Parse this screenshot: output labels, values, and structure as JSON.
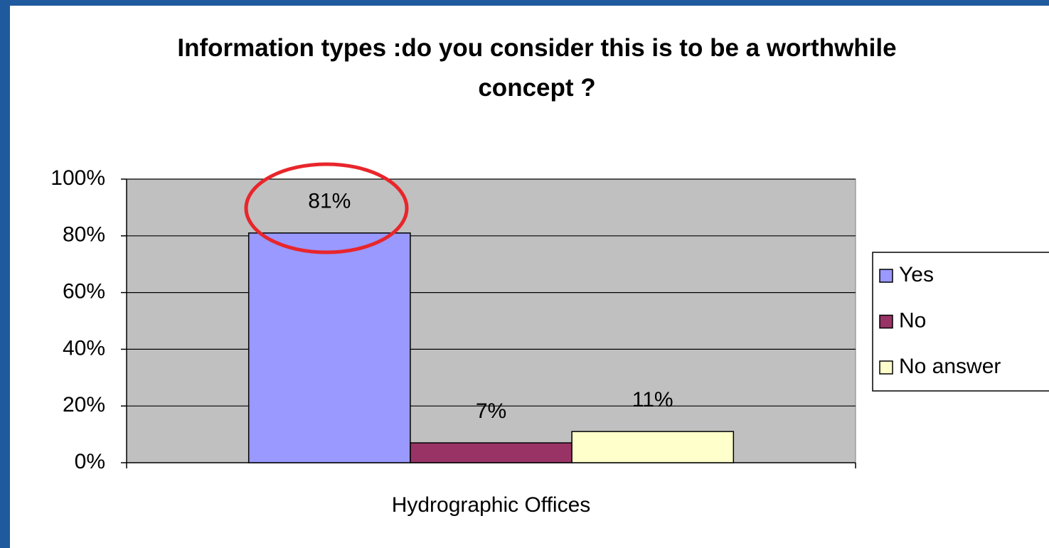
{
  "chart_data": {
    "type": "bar",
    "title": "Information types :do you consider this is to be a worthwhile concept ?",
    "categories": [
      "Hydrographic Offices"
    ],
    "series": [
      {
        "name": "Yes",
        "color": "#9999ff",
        "values": [
          81
        ],
        "value_labels": [
          "81%"
        ]
      },
      {
        "name": "No",
        "color": "#993366",
        "values": [
          7
        ],
        "value_labels": [
          "7%"
        ]
      },
      {
        "name": "No answer",
        "color": "#ffffcc",
        "values": [
          11
        ],
        "value_labels": [
          "11%"
        ]
      }
    ],
    "ylim": [
      0,
      100
    ],
    "yticks": [
      {
        "value": 0,
        "label": "0%"
      },
      {
        "value": 20,
        "label": "20%"
      },
      {
        "value": 40,
        "label": "40%"
      },
      {
        "value": 60,
        "label": "60%"
      },
      {
        "value": 80,
        "label": "80%"
      },
      {
        "value": 100,
        "label": "100%"
      }
    ],
    "grid": true,
    "plot_background": "#c0c0c0",
    "legend": "right"
  }
}
